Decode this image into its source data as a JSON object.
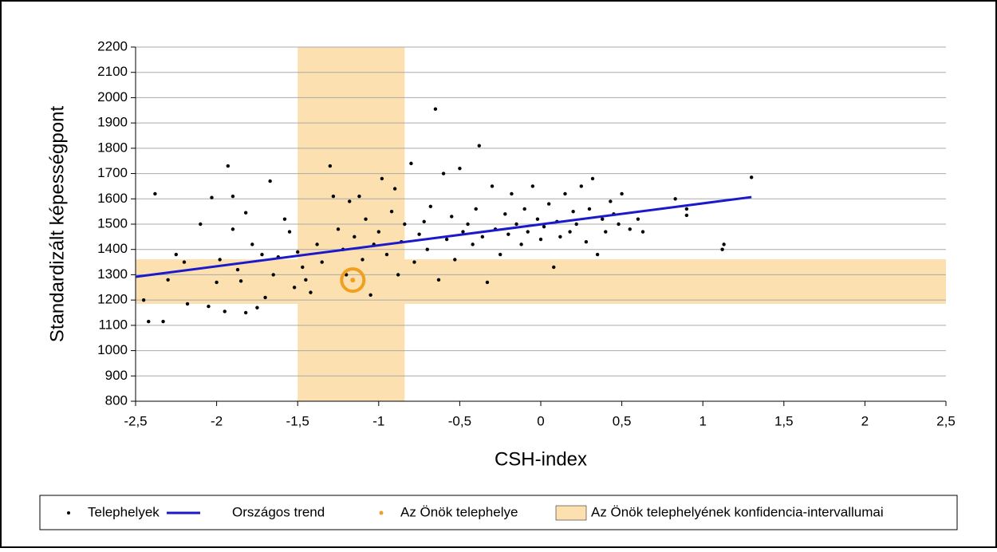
{
  "chart_data": {
    "type": "scatter",
    "x_label": "CSH-index",
    "y_label": "Standardizált képességpont",
    "xlim": [
      -2.5,
      2.5
    ],
    "ylim": [
      800,
      2200
    ],
    "xticks": [
      {
        "value": -2.5,
        "label": "-2,5"
      },
      -2,
      {
        "value": -1.5,
        "label": "-1,5"
      },
      -1,
      {
        "value": -0.5,
        "label": "-0,5"
      },
      0,
      {
        "value": 0.5,
        "label": "0,5"
      },
      1,
      {
        "value": 1.5,
        "label": "1,5"
      },
      2,
      {
        "value": 2.5,
        "label": "2,5"
      }
    ],
    "yticks": [
      800,
      900,
      1000,
      1100,
      1200,
      1300,
      1400,
      1500,
      1600,
      1700,
      1800,
      1900,
      2000,
      2100,
      2200
    ],
    "grid": true,
    "confidence": {
      "name": "Az Önök telephelyének konfidencia-intervallumai",
      "color": "#fde0b0",
      "x": [
        -1.5,
        -0.84
      ],
      "y": [
        1185,
        1361
      ]
    },
    "series": [
      {
        "name": "Telephelyek",
        "type": "scatter",
        "color": "#000000",
        "x": [
          -2.45,
          -2.42,
          -2.38,
          -2.33,
          -2.3,
          -2.25,
          -2.2,
          -2.18,
          -2.1,
          -2.05,
          -2.03,
          -2.0,
          -1.98,
          -1.95,
          -1.93,
          -1.9,
          -1.9,
          -1.87,
          -1.85,
          -1.82,
          -1.82,
          -1.78,
          -1.75,
          -1.72,
          -1.7,
          -1.67,
          -1.65,
          -1.62,
          -1.58,
          -1.55,
          -1.52,
          -1.5,
          -1.47,
          -1.45,
          -1.42,
          -1.38,
          -1.35,
          -1.3,
          -1.28,
          -1.25,
          -1.22,
          -1.2,
          -1.18,
          -1.15,
          -1.12,
          -1.1,
          -1.08,
          -1.05,
          -1.03,
          -1.0,
          -0.98,
          -0.95,
          -0.92,
          -0.9,
          -0.88,
          -0.86,
          -0.84,
          -0.8,
          -0.78,
          -0.75,
          -0.72,
          -0.7,
          -0.68,
          -0.65,
          -0.63,
          -0.6,
          -0.58,
          -0.55,
          -0.53,
          -0.5,
          -0.48,
          -0.45,
          -0.42,
          -0.4,
          -0.38,
          -0.36,
          -0.33,
          -0.3,
          -0.28,
          -0.25,
          -0.22,
          -0.2,
          -0.18,
          -0.15,
          -0.12,
          -0.1,
          -0.08,
          -0.05,
          -0.02,
          0.0,
          0.02,
          0.05,
          0.08,
          0.1,
          0.12,
          0.15,
          0.18,
          0.2,
          0.22,
          0.25,
          0.28,
          0.3,
          0.32,
          0.35,
          0.38,
          0.4,
          0.43,
          0.45,
          0.48,
          0.5,
          0.55,
          0.6,
          0.63,
          0.83,
          0.9,
          0.9,
          1.12,
          1.13,
          1.3
        ],
        "values": [
          1200,
          1115,
          1620,
          1115,
          1280,
          1380,
          1350,
          1185,
          1500,
          1175,
          1605,
          1270,
          1360,
          1155,
          1730,
          1610,
          1480,
          1320,
          1275,
          1545,
          1150,
          1420,
          1170,
          1380,
          1210,
          1670,
          1300,
          1370,
          1520,
          1470,
          1250,
          1390,
          1330,
          1280,
          1230,
          1420,
          1350,
          1730,
          1610,
          1480,
          1400,
          1300,
          1590,
          1450,
          1610,
          1360,
          1520,
          1220,
          1420,
          1470,
          1680,
          1380,
          1550,
          1640,
          1300,
          1430,
          1500,
          1740,
          1350,
          1460,
          1510,
          1400,
          1570,
          1955,
          1280,
          1700,
          1440,
          1530,
          1360,
          1720,
          1470,
          1500,
          1420,
          1560,
          1810,
          1450,
          1270,
          1650,
          1480,
          1380,
          1540,
          1460,
          1620,
          1500,
          1420,
          1560,
          1470,
          1650,
          1520,
          1440,
          1490,
          1580,
          1330,
          1510,
          1450,
          1620,
          1470,
          1550,
          1500,
          1650,
          1430,
          1560,
          1680,
          1380,
          1520,
          1470,
          1590,
          1540,
          1500,
          1620,
          1480,
          1520,
          1470,
          1600,
          1560,
          1535,
          1400,
          1420,
          1685
        ]
      },
      {
        "name": "Országos trend",
        "type": "line",
        "color": "#1a1acc",
        "x": [
          -2.5,
          1.3
        ],
        "values": [
          1292,
          1607
        ]
      },
      {
        "name": "Az Önök telephelye",
        "type": "scatter",
        "color": "#f0a020",
        "x": [
          -1.16
        ],
        "values": [
          1279
        ]
      }
    ]
  }
}
